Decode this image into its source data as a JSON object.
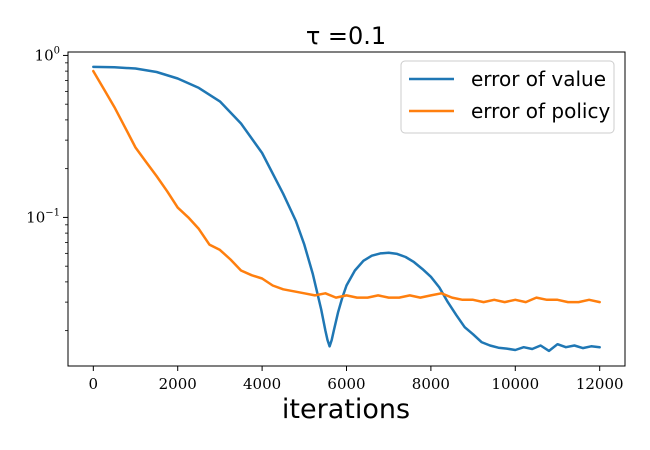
{
  "chart_data": {
    "type": "line",
    "title": "τ =0.1",
    "xlabel": "iterations",
    "ylabel": "",
    "yscale": "log",
    "xlim": [
      -600,
      12600
    ],
    "ylim": [
      0.0121,
      1.05
    ],
    "xticks": [
      0,
      2000,
      4000,
      6000,
      8000,
      10000,
      12000
    ],
    "xtick_labels": [
      "0",
      "2000",
      "4000",
      "6000",
      "8000",
      "10000",
      "12000"
    ],
    "yticks": [
      {
        "value": 1,
        "base": "10",
        "exp": "0"
      },
      {
        "value": 0.1,
        "base": "10",
        "exp": "−1"
      }
    ],
    "grid": false,
    "legend_position": "top-right",
    "series": [
      {
        "name": "error of value",
        "color": "#1f77b4",
        "x": [
          0,
          500,
          1000,
          1500,
          2000,
          2500,
          3000,
          3500,
          4000,
          4500,
          4800,
          5000,
          5200,
          5400,
          5500,
          5550,
          5600,
          5650,
          5700,
          5800,
          5900,
          6000,
          6200,
          6400,
          6600,
          6800,
          7000,
          7200,
          7400,
          7600,
          7800,
          8000,
          8200,
          8400,
          8600,
          8800,
          9000,
          9200,
          9400,
          9600,
          9800,
          10000,
          10200,
          10400,
          10600,
          10800,
          11000,
          11200,
          11400,
          11600,
          11800,
          12000
        ],
        "y": [
          0.85,
          0.845,
          0.83,
          0.79,
          0.72,
          0.63,
          0.52,
          0.38,
          0.25,
          0.14,
          0.095,
          0.068,
          0.045,
          0.027,
          0.02,
          0.0175,
          0.016,
          0.0175,
          0.02,
          0.026,
          0.032,
          0.038,
          0.047,
          0.054,
          0.058,
          0.06,
          0.0605,
          0.0595,
          0.057,
          0.053,
          0.048,
          0.043,
          0.037,
          0.03,
          0.025,
          0.021,
          0.019,
          0.017,
          0.0162,
          0.0157,
          0.0155,
          0.0152,
          0.0158,
          0.0154,
          0.0162,
          0.015,
          0.0165,
          0.0158,
          0.0162,
          0.0156,
          0.016,
          0.0158
        ]
      },
      {
        "name": "error of policy",
        "color": "#ff7f0e",
        "x": [
          0,
          250,
          500,
          750,
          1000,
          1250,
          1500,
          1750,
          2000,
          2250,
          2500,
          2750,
          3000,
          3250,
          3500,
          3750,
          4000,
          4250,
          4500,
          4750,
          5000,
          5250,
          5500,
          5750,
          6000,
          6250,
          6500,
          6750,
          7000,
          7250,
          7500,
          7750,
          8000,
          8250,
          8500,
          8750,
          9000,
          9250,
          9500,
          9750,
          10000,
          10250,
          10500,
          10750,
          11000,
          11250,
          11500,
          11750,
          12000
        ],
        "y": [
          0.8,
          0.62,
          0.48,
          0.36,
          0.27,
          0.22,
          0.18,
          0.145,
          0.115,
          0.1,
          0.085,
          0.068,
          0.063,
          0.055,
          0.047,
          0.044,
          0.042,
          0.038,
          0.036,
          0.035,
          0.034,
          0.033,
          0.034,
          0.032,
          0.033,
          0.032,
          0.032,
          0.033,
          0.032,
          0.032,
          0.033,
          0.032,
          0.033,
          0.034,
          0.032,
          0.031,
          0.031,
          0.03,
          0.031,
          0.03,
          0.031,
          0.03,
          0.032,
          0.031,
          0.031,
          0.03,
          0.03,
          0.031,
          0.03
        ]
      }
    ]
  }
}
